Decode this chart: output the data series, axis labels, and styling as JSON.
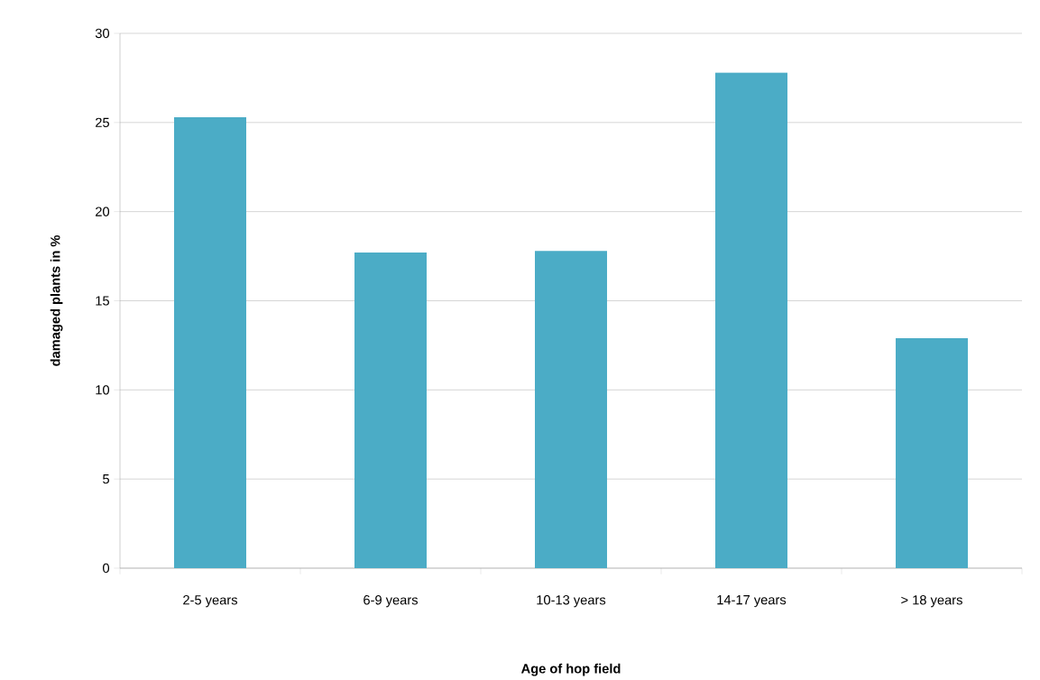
{
  "chart_data": {
    "type": "bar",
    "xlabel": "Age of hop field",
    "ylabel": "damaged plants in %",
    "categories": [
      "2-5 years",
      "6-9 years",
      "10-13 years",
      "14-17 years",
      "> 18 years"
    ],
    "values": [
      25.3,
      17.7,
      17.8,
      27.8,
      12.9
    ],
    "color": "#4bacc6",
    "ylim": [
      0,
      30
    ],
    "yticks": [
      0,
      5,
      10,
      15,
      20,
      25,
      30
    ],
    "grid": "y"
  }
}
